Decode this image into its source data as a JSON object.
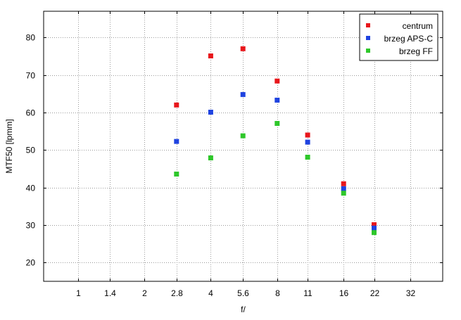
{
  "chart_data": {
    "type": "scatter",
    "xlabel": "f/",
    "ylabel": "MTF50 [lpmm]",
    "x_scale": "log",
    "x_ticks": [
      "1",
      "1.4",
      "2",
      "2.8",
      "4",
      "5.6",
      "8",
      "11",
      "16",
      "22",
      "32"
    ],
    "x_tick_values": [
      1,
      1.4,
      2,
      2.8,
      4,
      5.6,
      8,
      11,
      16,
      22,
      32
    ],
    "xlim": [
      0.7,
      45
    ],
    "ylim": [
      15,
      87
    ],
    "y_ticks": [
      20,
      30,
      40,
      50,
      60,
      70,
      80
    ],
    "grid": true,
    "legend_position": "top-right",
    "series": [
      {
        "name": "centrum",
        "color": "#e8161b",
        "x": [
          2.8,
          4,
          5.6,
          8,
          11,
          16,
          22
        ],
        "y": [
          62.0,
          75.1,
          77.0,
          68.4,
          54.0,
          41.0,
          30.1
        ]
      },
      {
        "name": "brzeg APS-C",
        "color": "#1f43e0",
        "x": [
          2.8,
          4,
          5.6,
          8,
          11,
          16,
          22
        ],
        "y": [
          52.3,
          60.1,
          64.8,
          63.3,
          52.1,
          39.7,
          29.2
        ]
      },
      {
        "name": "brzeg FF",
        "color": "#2ec72a",
        "x": [
          2.8,
          4,
          5.6,
          8,
          11,
          16,
          22
        ],
        "y": [
          43.6,
          47.9,
          53.8,
          57.1,
          48.1,
          38.5,
          28.0
        ]
      }
    ]
  }
}
